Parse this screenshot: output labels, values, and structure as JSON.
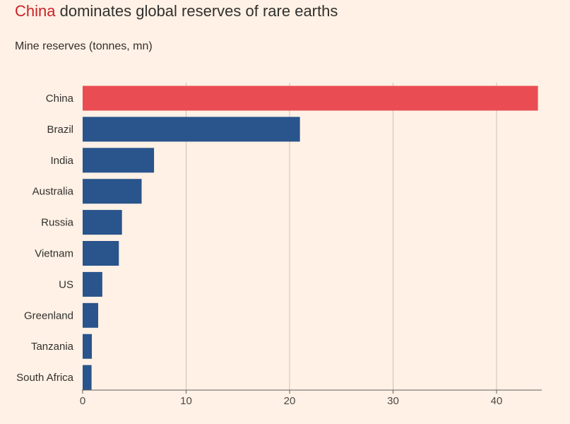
{
  "title": {
    "highlight": "China",
    "rest": " dominates global reserves of rare earths"
  },
  "subtitle": "Mine reserves (tonnes, mn)",
  "colors": {
    "background": "#fff1e5",
    "highlight_bar": "#ea4c54",
    "bar": "#29548c",
    "title_highlight": "#cc2229",
    "grid": "#ccc1b7",
    "axis": "#66605c"
  },
  "chart_data": {
    "type": "bar",
    "orientation": "horizontal",
    "title": "China dominates global reserves of rare earths",
    "subtitle": "Mine reserves (tonnes, mn)",
    "categories": [
      "China",
      "Brazil",
      "India",
      "Australia",
      "Russia",
      "Vietnam",
      "US",
      "Greenland",
      "Tanzania",
      "South Africa"
    ],
    "values": [
      44,
      21,
      6.9,
      5.7,
      3.8,
      3.5,
      1.9,
      1.5,
      0.89,
      0.86
    ],
    "highlight": "China",
    "xlim": [
      0,
      44
    ],
    "xticks": [
      0,
      10,
      20,
      30,
      40
    ],
    "grid": true,
    "xlabel": "",
    "ylabel": ""
  }
}
